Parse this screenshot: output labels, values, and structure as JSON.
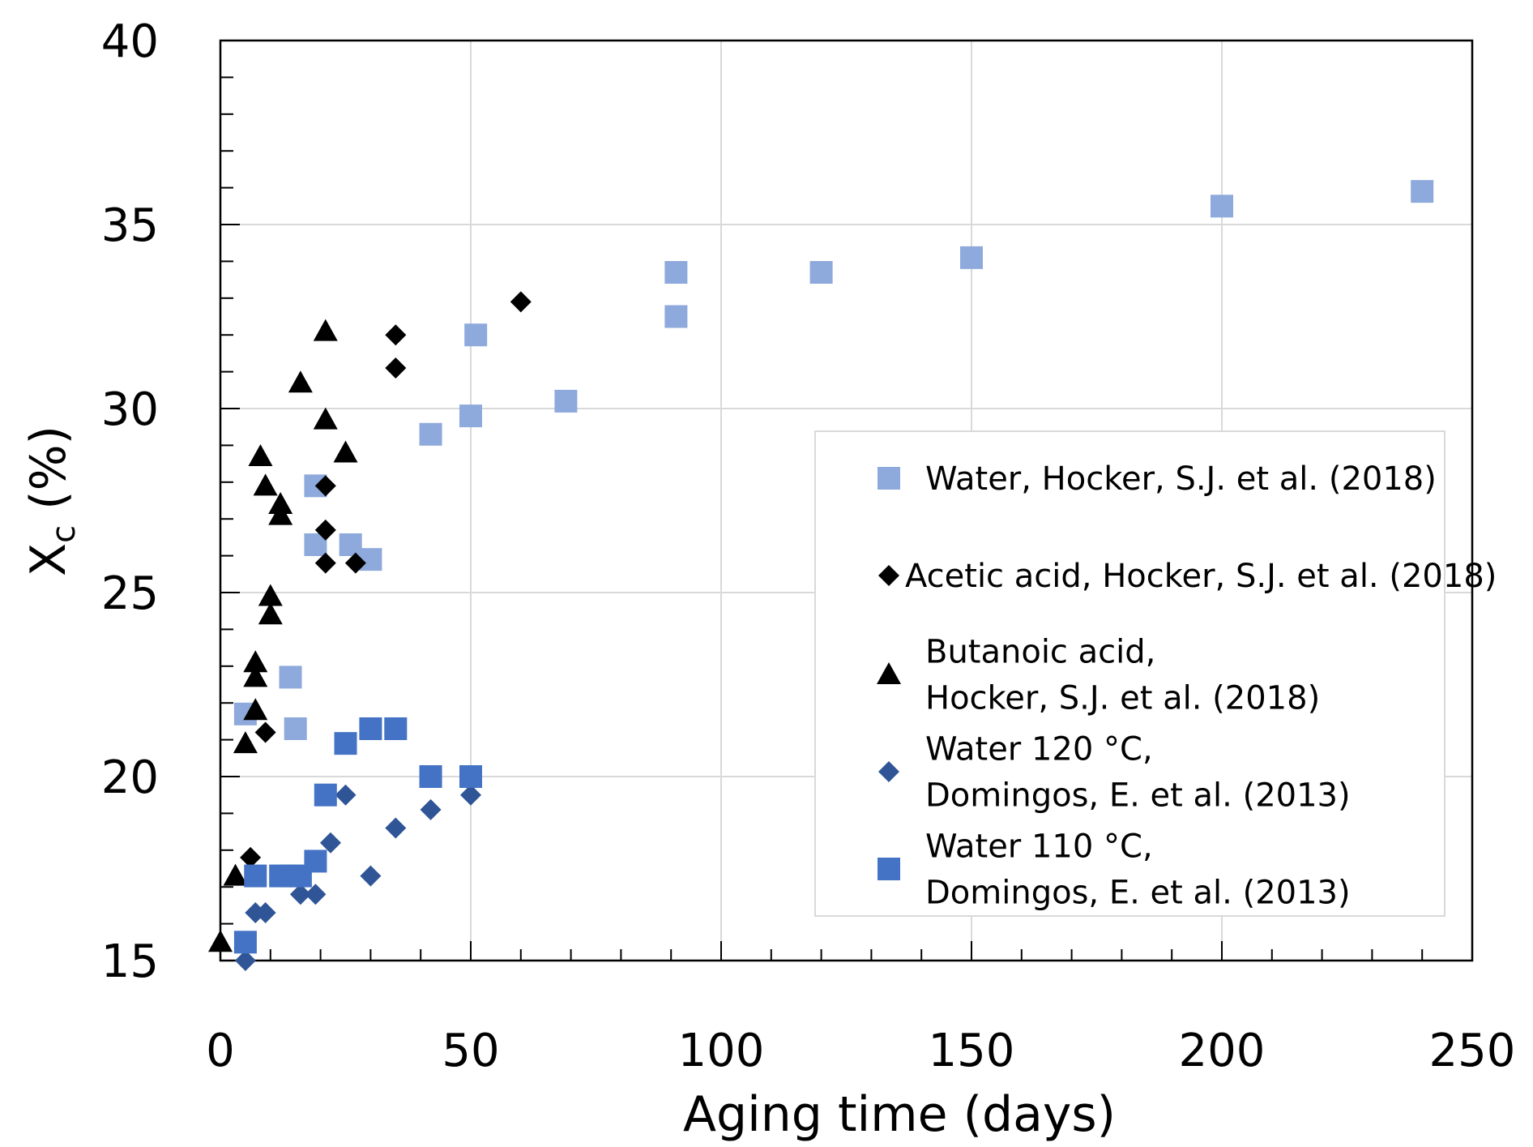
{
  "chart_data": {
    "type": "scatter",
    "title": "",
    "xlabel": "Aging time (days)",
    "ylabel_main": "X",
    "ylabel_sub": "c",
    "ylabel_unit": " (%)",
    "xlim": [
      0,
      250
    ],
    "ylim": [
      15,
      40
    ],
    "x_major_ticks": [
      0,
      50,
      100,
      150,
      200,
      250
    ],
    "x_tick_labels": [
      "0",
      "50",
      "100",
      "150",
      "200",
      "250"
    ],
    "y_major_ticks": [
      15,
      20,
      25,
      30,
      35,
      40
    ],
    "y_tick_labels": [
      "15",
      "20",
      "25",
      "30",
      "35",
      "40"
    ],
    "x_minor_step": 10,
    "y_minor_step": 1,
    "grid": true,
    "legend_position": "right",
    "series": [
      {
        "name": "water-hocker",
        "legend_lines": [
          "Water, Hocker, S.J. et al. (2018)"
        ],
        "marker": "square",
        "color": "#8EA9DB",
        "points": [
          [
            5,
            21.7
          ],
          [
            14,
            22.7
          ],
          [
            19,
            26.3
          ],
          [
            19,
            27.9
          ],
          [
            26,
            26.3
          ],
          [
            30,
            25.9
          ],
          [
            15,
            21.3
          ],
          [
            42,
            29.3
          ],
          [
            50,
            29.8
          ],
          [
            51,
            32.0
          ],
          [
            69,
            30.2
          ],
          [
            91,
            32.5
          ],
          [
            91,
            33.7
          ],
          [
            120,
            33.7
          ],
          [
            150,
            34.1
          ],
          [
            200,
            35.5
          ],
          [
            240,
            35.9
          ]
        ]
      },
      {
        "name": "acetic-hocker",
        "legend_lines": [
          "Acetic acid, Hocker, S.J. et al. (2018)"
        ],
        "marker": "diamond",
        "color": "#000000",
        "points": [
          [
            6,
            17.8
          ],
          [
            9,
            21.2
          ],
          [
            21,
            25.8
          ],
          [
            21,
            26.7
          ],
          [
            21,
            27.9
          ],
          [
            27,
            25.8
          ],
          [
            35,
            31.1
          ],
          [
            35,
            32.0
          ],
          [
            60,
            32.9
          ]
        ]
      },
      {
        "name": "butanoic-hocker",
        "legend_lines": [
          "Butanoic acid,",
          "Hocker, S.J. et al. (2018)"
        ],
        "marker": "triangle",
        "color": "#000000",
        "points": [
          [
            0,
            15.5
          ],
          [
            3,
            17.3
          ],
          [
            5,
            20.9
          ],
          [
            7,
            21.8
          ],
          [
            7,
            22.7
          ],
          [
            7,
            23.1
          ],
          [
            10,
            24.4
          ],
          [
            10,
            24.9
          ],
          [
            9,
            27.9
          ],
          [
            8,
            28.7
          ],
          [
            12,
            27.1
          ],
          [
            12,
            27.4
          ],
          [
            16,
            30.7
          ],
          [
            21,
            29.7
          ],
          [
            21,
            32.1
          ],
          [
            25,
            28.8
          ]
        ]
      },
      {
        "name": "water120-domingos",
        "legend_lines": [
          "Water 120 °C,",
          "Domingos, E. et al. (2013)"
        ],
        "marker": "diamond",
        "color": "#2F5597",
        "points": [
          [
            5,
            15.0
          ],
          [
            7,
            16.3
          ],
          [
            9,
            16.3
          ],
          [
            16,
            16.8
          ],
          [
            19,
            16.8
          ],
          [
            22,
            18.2
          ],
          [
            25,
            19.5
          ],
          [
            30,
            17.3
          ],
          [
            35,
            18.6
          ],
          [
            42,
            19.1
          ],
          [
            50,
            19.5
          ]
        ]
      },
      {
        "name": "water110-domingos",
        "legend_lines": [
          "Water 110 °C,",
          "Domingos, E. et al. (2013)"
        ],
        "marker": "square",
        "color": "#4472C4",
        "points": [
          [
            5,
            15.5
          ],
          [
            7,
            17.3
          ],
          [
            12,
            17.3
          ],
          [
            14,
            17.3
          ],
          [
            16,
            17.3
          ],
          [
            19,
            17.7
          ],
          [
            21,
            19.5
          ],
          [
            25,
            20.9
          ],
          [
            30,
            21.3
          ],
          [
            35,
            21.3
          ],
          [
            42,
            20.0
          ],
          [
            50,
            20.0
          ]
        ]
      }
    ]
  }
}
